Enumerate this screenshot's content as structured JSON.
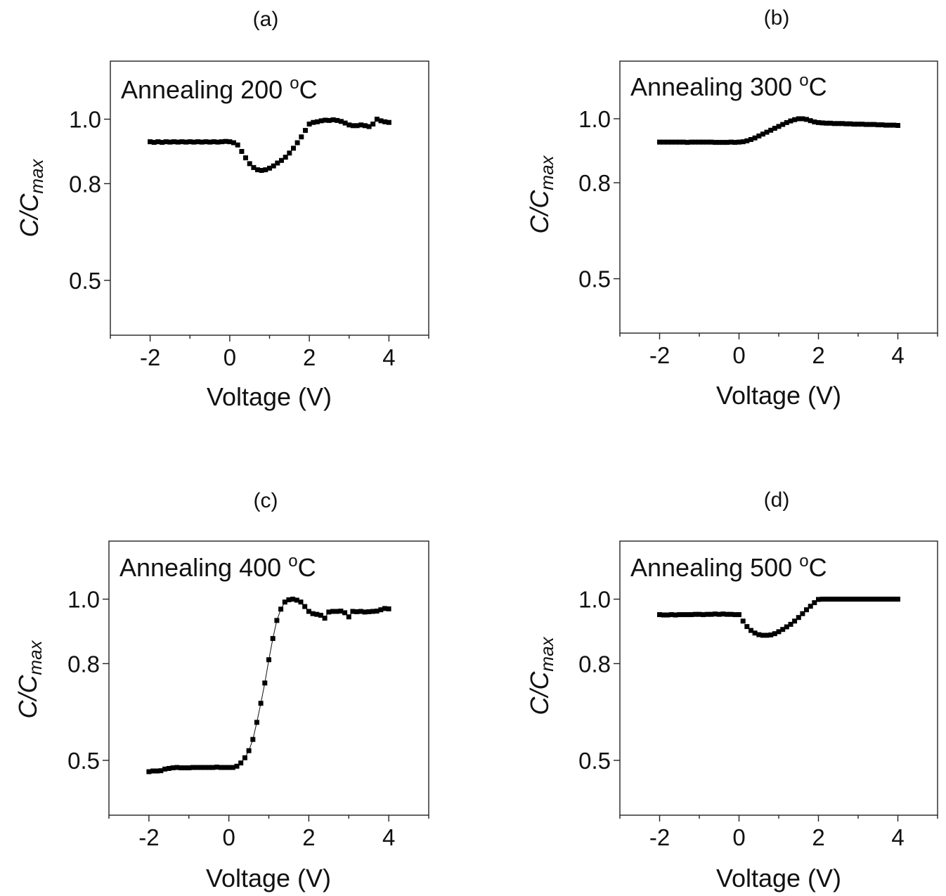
{
  "figure": {
    "panels": [
      "a",
      "b",
      "c",
      "d"
    ]
  },
  "chart_data": [
    {
      "type": "scatter",
      "panel_label": "(a)",
      "annotation": "Annealing 200 ",
      "annotation_sup": "o",
      "annotation_unit": "C",
      "xlabel": "Voltage (V)",
      "ylabel_main": "C/C",
      "ylabel_sub": "max",
      "xlim": [
        -3,
        5
      ],
      "ylim": [
        0.33,
        1.18
      ],
      "xticks": [
        -2,
        0,
        2,
        4
      ],
      "xtick_labels": [
        "-2",
        "0",
        "2",
        "4"
      ],
      "yticks": [
        0.5,
        0.8,
        1.0
      ],
      "ytick_labels": [
        "0.5",
        "0.8",
        "1.0"
      ],
      "connect": false,
      "x": [
        -2.0,
        -1.9,
        -1.8,
        -1.7,
        -1.6,
        -1.5,
        -1.4,
        -1.3,
        -1.2,
        -1.1,
        -1.0,
        -0.9,
        -0.8,
        -0.7,
        -0.6,
        -0.5,
        -0.4,
        -0.3,
        -0.2,
        -0.1,
        0.0,
        0.1,
        0.2,
        0.3,
        0.4,
        0.5,
        0.6,
        0.7,
        0.8,
        0.9,
        1.0,
        1.1,
        1.2,
        1.3,
        1.4,
        1.5,
        1.6,
        1.7,
        1.8,
        1.9,
        2.0,
        2.1,
        2.2,
        2.3,
        2.4,
        2.5,
        2.6,
        2.7,
        2.8,
        2.9,
        3.0,
        3.1,
        3.2,
        3.3,
        3.4,
        3.5,
        3.6,
        3.7,
        3.8,
        3.9,
        4.0
      ],
      "y": [
        0.93,
        0.928,
        0.93,
        0.928,
        0.93,
        0.929,
        0.93,
        0.929,
        0.93,
        0.929,
        0.93,
        0.929,
        0.93,
        0.929,
        0.93,
        0.929,
        0.93,
        0.929,
        0.93,
        0.931,
        0.93,
        0.927,
        0.92,
        0.9,
        0.88,
        0.862,
        0.85,
        0.843,
        0.841,
        0.843,
        0.848,
        0.855,
        0.864,
        0.872,
        0.882,
        0.895,
        0.91,
        0.927,
        0.945,
        0.965,
        0.985,
        0.99,
        0.992,
        0.995,
        0.997,
        0.996,
        0.998,
        0.996,
        0.993,
        0.988,
        0.982,
        0.98,
        0.98,
        0.982,
        0.98,
        0.977,
        0.985,
        1.0,
        0.995,
        0.992,
        0.99
      ]
    },
    {
      "type": "scatter",
      "panel_label": "(b)",
      "annotation": "Annealing 300 ",
      "annotation_sup": "o",
      "annotation_unit": "C",
      "xlabel": "Voltage (V)",
      "ylabel_main": "C/C",
      "ylabel_sub": "max",
      "xlim": [
        -3,
        5
      ],
      "ylim": [
        0.33,
        1.18
      ],
      "xticks": [
        -2,
        0,
        2,
        4
      ],
      "xtick_labels": [
        "-2",
        "0",
        "2",
        "4"
      ],
      "yticks": [
        0.5,
        0.8,
        1.0
      ],
      "ytick_labels": [
        "0.5",
        "0.8",
        "1.0"
      ],
      "connect": false,
      "x": [
        -2.0,
        -1.9,
        -1.8,
        -1.7,
        -1.6,
        -1.5,
        -1.4,
        -1.3,
        -1.2,
        -1.1,
        -1.0,
        -0.9,
        -0.8,
        -0.7,
        -0.6,
        -0.5,
        -0.4,
        -0.3,
        -0.2,
        -0.1,
        0.0,
        0.1,
        0.2,
        0.3,
        0.4,
        0.5,
        0.6,
        0.7,
        0.8,
        0.9,
        1.0,
        1.1,
        1.2,
        1.3,
        1.4,
        1.5,
        1.6,
        1.7,
        1.8,
        1.9,
        2.0,
        2.1,
        2.2,
        2.3,
        2.4,
        2.5,
        2.6,
        2.7,
        2.8,
        2.9,
        3.0,
        3.1,
        3.2,
        3.3,
        3.4,
        3.5,
        3.6,
        3.7,
        3.8,
        3.9,
        4.0
      ],
      "y": [
        0.927,
        0.927,
        0.927,
        0.927,
        0.927,
        0.927,
        0.927,
        0.926,
        0.927,
        0.927,
        0.927,
        0.927,
        0.927,
        0.927,
        0.926,
        0.926,
        0.926,
        0.926,
        0.927,
        0.926,
        0.927,
        0.928,
        0.931,
        0.935,
        0.94,
        0.946,
        0.952,
        0.958,
        0.964,
        0.97,
        0.976,
        0.982,
        0.988,
        0.993,
        0.997,
        1.0,
        1.0,
        0.998,
        0.994,
        0.99,
        0.988,
        0.987,
        0.986,
        0.986,
        0.985,
        0.985,
        0.985,
        0.984,
        0.984,
        0.983,
        0.983,
        0.983,
        0.982,
        0.982,
        0.982,
        0.981,
        0.981,
        0.98,
        0.98,
        0.98,
        0.979
      ]
    },
    {
      "type": "scatter",
      "panel_label": "(c)",
      "annotation": "Annealing 400 ",
      "annotation_sup": "o",
      "annotation_unit": "C",
      "xlabel": "Voltage (V)",
      "ylabel_main": "C/C",
      "ylabel_sub": "max",
      "xlim": [
        -3,
        5
      ],
      "ylim": [
        0.33,
        1.18
      ],
      "xticks": [
        -2,
        0,
        2,
        4
      ],
      "xtick_labels": [
        "-2",
        "0",
        "2",
        "4"
      ],
      "yticks": [
        0.5,
        0.8,
        1.0
      ],
      "ytick_labels": [
        "0.5",
        "0.8",
        "1.0"
      ],
      "connect": true,
      "x": [
        -2.0,
        -1.9,
        -1.8,
        -1.7,
        -1.6,
        -1.5,
        -1.4,
        -1.3,
        -1.2,
        -1.1,
        -1.0,
        -0.9,
        -0.8,
        -0.7,
        -0.6,
        -0.5,
        -0.4,
        -0.3,
        -0.2,
        -0.1,
        0.0,
        0.1,
        0.2,
        0.3,
        0.4,
        0.5,
        0.6,
        0.7,
        0.8,
        0.9,
        1.0,
        1.1,
        1.2,
        1.3,
        1.4,
        1.5,
        1.6,
        1.7,
        1.8,
        1.9,
        2.0,
        2.1,
        2.2,
        2.3,
        2.4,
        2.5,
        2.6,
        2.7,
        2.8,
        2.9,
        3.0,
        3.1,
        3.2,
        3.3,
        3.4,
        3.5,
        3.6,
        3.7,
        3.8,
        3.9,
        4.0
      ],
      "y": [
        0.465,
        0.467,
        0.467,
        0.468,
        0.473,
        0.475,
        0.477,
        0.478,
        0.477,
        0.477,
        0.477,
        0.478,
        0.478,
        0.478,
        0.478,
        0.478,
        0.478,
        0.479,
        0.478,
        0.478,
        0.478,
        0.478,
        0.482,
        0.492,
        0.508,
        0.53,
        0.565,
        0.618,
        0.677,
        0.74,
        0.812,
        0.878,
        0.934,
        0.969,
        0.991,
        0.998,
        1.0,
        0.997,
        0.991,
        0.977,
        0.962,
        0.955,
        0.953,
        0.95,
        0.941,
        0.96,
        0.962,
        0.962,
        0.963,
        0.958,
        0.945,
        0.962,
        0.961,
        0.962,
        0.96,
        0.961,
        0.962,
        0.963,
        0.967,
        0.971,
        0.97
      ]
    },
    {
      "type": "scatter",
      "panel_label": "(d)",
      "annotation": "Annealing 500 ",
      "annotation_sup": "o",
      "annotation_unit": "C",
      "xlabel": "Voltage (V)",
      "ylabel_main": "C/C",
      "ylabel_sub": "max",
      "xlim": [
        -3,
        5
      ],
      "ylim": [
        0.33,
        1.18
      ],
      "xticks": [
        -2,
        0,
        2,
        4
      ],
      "xtick_labels": [
        "-2",
        "0",
        "2",
        "4"
      ],
      "yticks": [
        0.5,
        0.8,
        1.0
      ],
      "ytick_labels": [
        "0.5",
        "0.8",
        "1.0"
      ],
      "connect": false,
      "x": [
        -2.0,
        -1.9,
        -1.8,
        -1.7,
        -1.6,
        -1.5,
        -1.4,
        -1.3,
        -1.2,
        -1.1,
        -1.0,
        -0.9,
        -0.8,
        -0.7,
        -0.6,
        -0.5,
        -0.4,
        -0.3,
        -0.2,
        -0.1,
        0.0,
        0.1,
        0.2,
        0.3,
        0.4,
        0.5,
        0.6,
        0.7,
        0.8,
        0.9,
        1.0,
        1.1,
        1.2,
        1.3,
        1.4,
        1.5,
        1.6,
        1.7,
        1.8,
        1.9,
        2.0,
        2.1,
        2.2,
        2.3,
        2.4,
        2.5,
        2.6,
        2.7,
        2.8,
        2.9,
        3.0,
        3.1,
        3.2,
        3.3,
        3.4,
        3.5,
        3.6,
        3.7,
        3.8,
        3.9,
        4.0
      ],
      "y": [
        0.952,
        0.951,
        0.951,
        0.952,
        0.951,
        0.952,
        0.952,
        0.952,
        0.952,
        0.953,
        0.953,
        0.952,
        0.953,
        0.953,
        0.954,
        0.953,
        0.954,
        0.953,
        0.953,
        0.952,
        0.952,
        0.932,
        0.915,
        0.903,
        0.895,
        0.89,
        0.888,
        0.888,
        0.889,
        0.893,
        0.899,
        0.906,
        0.914,
        0.922,
        0.932,
        0.943,
        0.955,
        0.967,
        0.978,
        0.989,
        0.999,
        1.0,
        1.0,
        1.0,
        1.0,
        1.0,
        1.0,
        1.0,
        1.0,
        1.0,
        1.0,
        1.0,
        1.0,
        1.0,
        1.0,
        1.0,
        1.0,
        1.0,
        1.0,
        1.0,
        1.0
      ]
    }
  ]
}
